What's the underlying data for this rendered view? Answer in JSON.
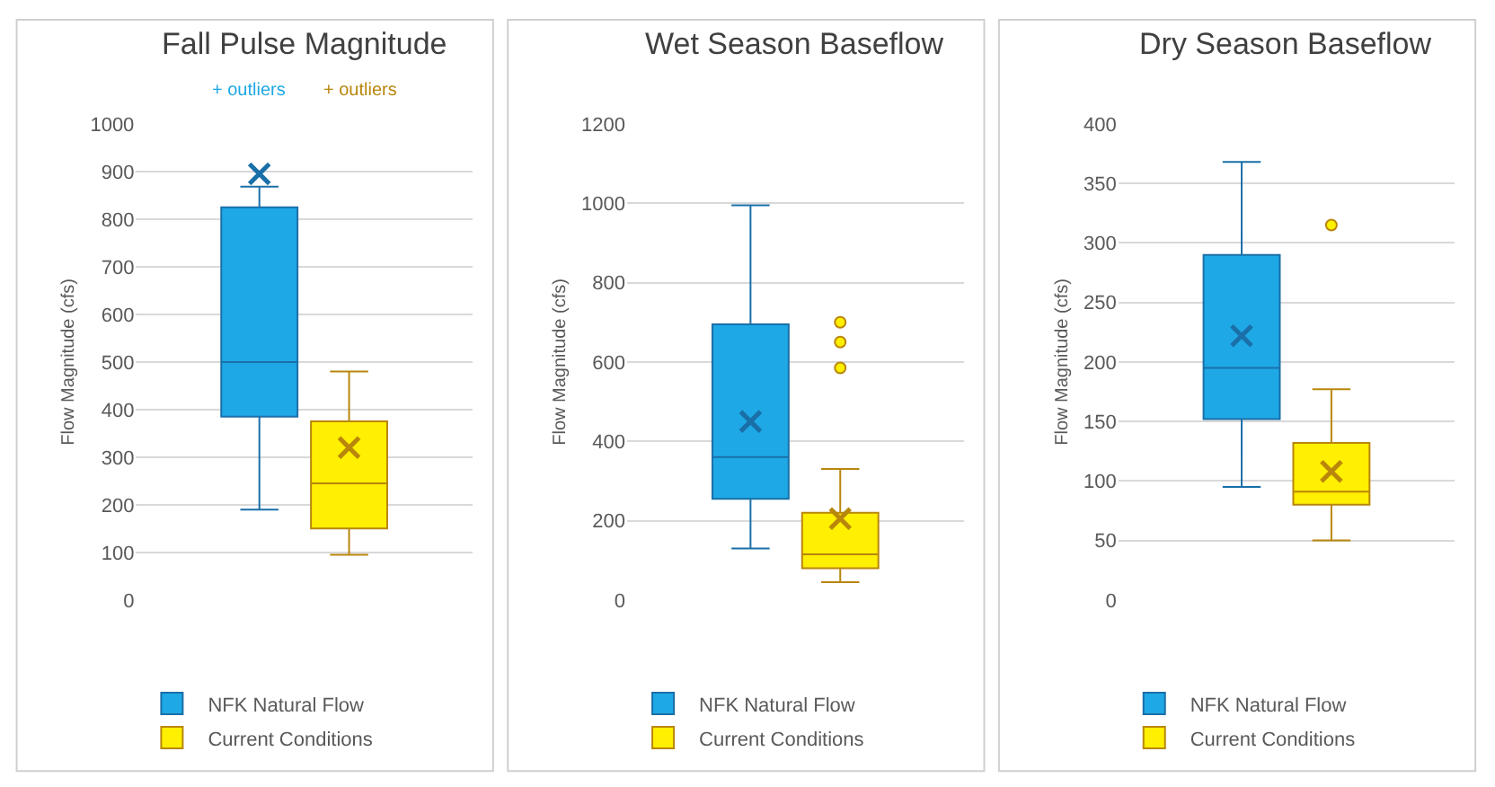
{
  "chart_data": [
    {
      "type": "box",
      "title": "Fall Pulse Magnitude",
      "ylabel": "Flow Magnitude (cfs)",
      "categories": [
        null
      ],
      "ylim": [
        0,
        1000
      ],
      "yticks": [
        0,
        100,
        200,
        300,
        400,
        500,
        600,
        700,
        800,
        900,
        1000
      ],
      "grid": "y",
      "legend": "bottom",
      "tick_labels": "y",
      "annotations": [
        "+ outliers",
        "+ outliers"
      ],
      "series": [
        {
          "name": "NFK Natural Flow",
          "color": "#1ea8e6",
          "boxes": [
            {
              "low": 190,
              "q1": 385,
              "median": 500,
              "q3": 825,
              "high": 868,
              "mean": 895
            }
          ]
        },
        {
          "name": "Current Conditions",
          "color": "#ffef00",
          "boxes": [
            {
              "low": 95,
              "q1": 150,
              "median": 245,
              "q3": 375,
              "high": 480,
              "mean": 320
            }
          ]
        }
      ]
    },
    {
      "type": "box",
      "title": "Wet Season Baseflow",
      "ylabel": "Flow Magnitude (cfs)",
      "categories": [
        null
      ],
      "ylim": [
        0,
        1200
      ],
      "yticks": [
        0,
        200,
        400,
        600,
        800,
        1000,
        1200
      ],
      "grid": "y",
      "legend": "bottom",
      "tick_labels": "y",
      "series": [
        {
          "name": "NFK Natural Flow",
          "color": "#1ea8e6",
          "boxes": [
            {
              "low": 130,
              "q1": 255,
              "median": 360,
              "q3": 695,
              "high": 995,
              "mean": 450
            }
          ]
        },
        {
          "name": "Current Conditions",
          "color": "#ffef00",
          "boxes": [
            {
              "low": 45,
              "q1": 80,
              "median": 115,
              "q3": 220,
              "high": 330,
              "mean": 205,
              "outliers": [
                585,
                650,
                700
              ]
            }
          ]
        }
      ]
    },
    {
      "type": "box",
      "title": "Dry Season Baseflow",
      "ylabel": "Flow Magnitude (cfs)",
      "categories": [
        null
      ],
      "ylim": [
        0,
        400
      ],
      "yticks": [
        0,
        50,
        100,
        150,
        200,
        250,
        300,
        350,
        400
      ],
      "grid": "y",
      "legend": "bottom",
      "tick_labels": "y",
      "series": [
        {
          "name": "NFK Natural Flow",
          "color": "#1ea8e6",
          "boxes": [
            {
              "low": 95,
              "q1": 152,
              "median": 195,
              "q3": 290,
              "high": 368,
              "mean": 222
            }
          ]
        },
        {
          "name": "Current Conditions",
          "color": "#ffef00",
          "boxes": [
            {
              "low": 50,
              "q1": 80,
              "median": 91,
              "q3": 132,
              "high": 177,
              "mean": 108,
              "outliers": [
                315
              ]
            }
          ]
        }
      ]
    }
  ]
}
